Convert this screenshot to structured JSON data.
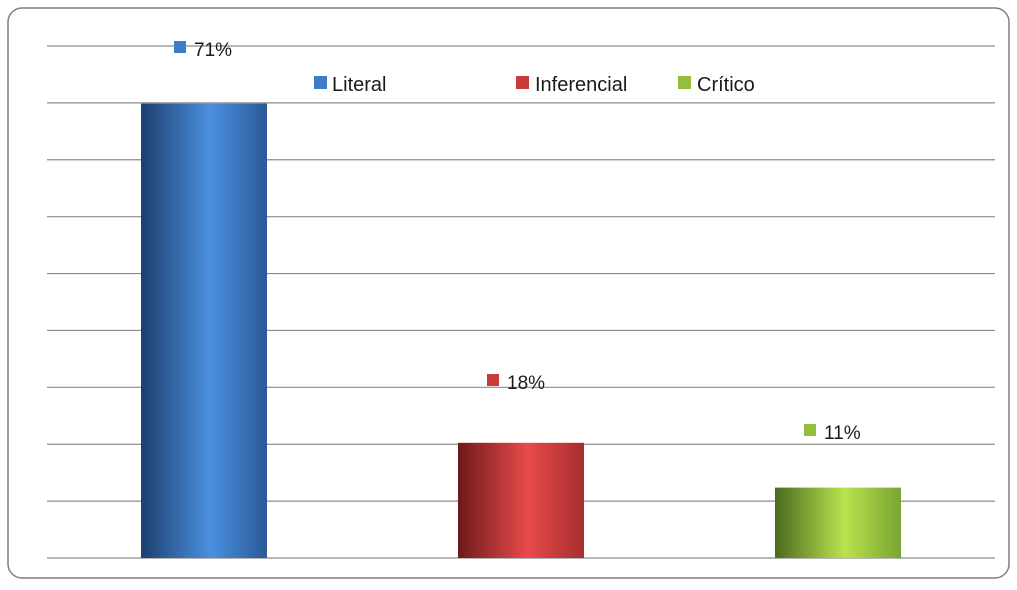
{
  "chart_data": {
    "type": "bar",
    "categories": [
      "Literal",
      "Inferencial",
      "Crítico"
    ],
    "values": [
      71,
      18,
      11
    ],
    "value_labels": [
      "71%",
      "18%",
      "11%"
    ],
    "unit": "%",
    "ylim": [
      0,
      80
    ],
    "grid": true,
    "gridline_count": 10,
    "legend": {
      "position": "top",
      "entries": [
        "Literal",
        "Inferencial",
        "Crítico"
      ]
    },
    "colors": {
      "Literal": "#3d7cc9",
      "Inferencial": "#cc3b3b",
      "Crítico": "#94be3e"
    },
    "title": "",
    "xlabel": "",
    "ylabel": ""
  }
}
